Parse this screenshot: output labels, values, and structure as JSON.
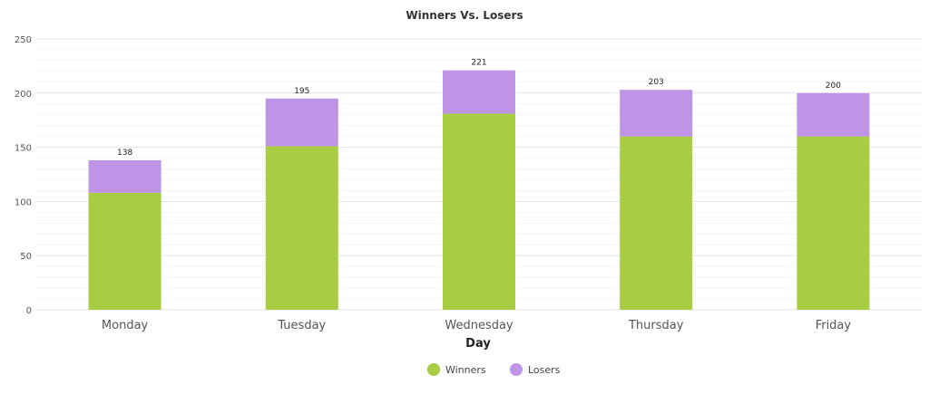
{
  "chart_data": {
    "type": "bar",
    "stacked": true,
    "title": "Winners Vs. Losers",
    "xlabel": "Day",
    "ylabel": "",
    "ylim": [
      0,
      250
    ],
    "yticks": [
      "0",
      "50",
      "100",
      "150",
      "200",
      "250"
    ],
    "categories": [
      "Monday",
      "Tuesday",
      "Wednesday",
      "Thursday",
      "Friday"
    ],
    "series": [
      {
        "name": "Winners",
        "values": [
          108,
          151,
          181,
          160,
          160
        ],
        "color": "#a8cc42"
      },
      {
        "name": "Losers",
        "values": [
          30,
          44,
          40,
          43,
          40
        ],
        "color": "#bf93e6"
      }
    ],
    "totals": [
      "138",
      "195",
      "221",
      "203",
      "200"
    ],
    "grid": true,
    "legend": "bottom-center"
  }
}
